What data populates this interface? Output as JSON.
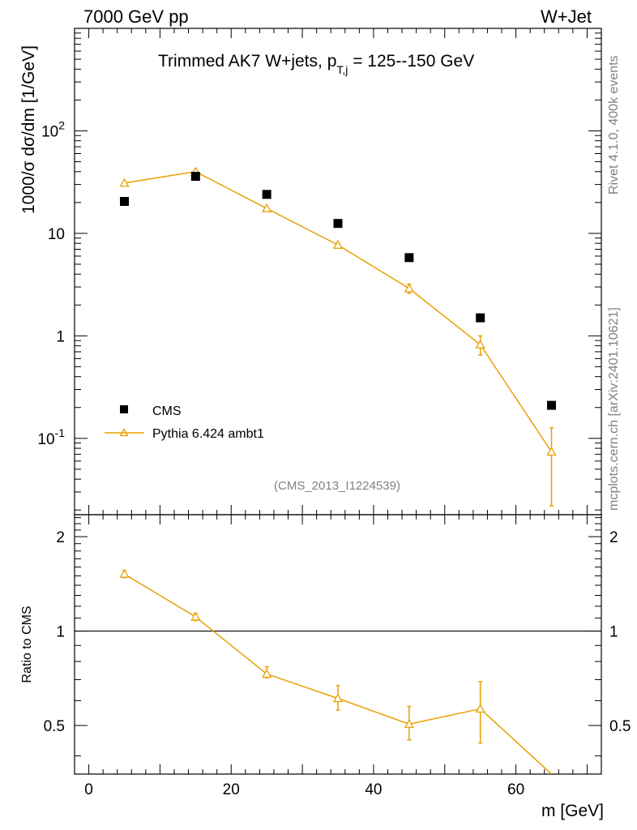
{
  "header": {
    "left": "7000 GeV pp",
    "right": "W+Jet"
  },
  "side": {
    "rivet": "Rivet 4.1.0,  400k events",
    "mcplots": "mcplots.cern.ch [arXiv:2401.10621]"
  },
  "chart_data": [
    {
      "type": "scatter",
      "panel": "main",
      "title_main": "Trimmed AK7 W+jets, p",
      "title_sub": "T,j",
      "title_rest": " = 125--150 GeV",
      "ylabel": "1000/σ  dσ/dm [1/GeV]",
      "yscale": "log",
      "ylim": [
        0.018,
        1000
      ],
      "xlim": [
        -2,
        72
      ],
      "ytick_labels": [
        "10^{-1}",
        "1",
        "10",
        "10^{2}"
      ],
      "ytick_values": [
        0.1,
        1,
        10,
        100
      ],
      "analysis_label": "(CMS_2013_I1224539)",
      "legend": [
        "CMS",
        "Pythia 6.424 ambt1"
      ],
      "series": [
        {
          "name": "CMS",
          "color": "#000000",
          "marker": "square",
          "x": [
            5,
            15,
            25,
            35,
            45,
            55,
            65
          ],
          "y": [
            20.5,
            36.0,
            24.0,
            12.5,
            5.8,
            1.5,
            0.21
          ]
        },
        {
          "name": "Pythia 6.424 ambt1",
          "color": "#E8A000",
          "marker": "triangle",
          "x": [
            5,
            15,
            25,
            35,
            45,
            55,
            65
          ],
          "y": [
            31.0,
            40.0,
            17.5,
            7.7,
            2.9,
            0.82,
            0.074
          ],
          "yerr_low": [
            30.0,
            38.8,
            17.0,
            7.4,
            2.6,
            0.65,
            0.022
          ],
          "yerr_high": [
            32.0,
            41.2,
            18.0,
            8.0,
            3.2,
            1.0,
            0.127
          ]
        }
      ]
    },
    {
      "type": "line",
      "panel": "ratio",
      "ylabel": "Ratio to CMS",
      "xlabel": "m [GeV]",
      "ylim": [
        0.35,
        2.35
      ],
      "xlim": [
        -2,
        72
      ],
      "xtick_labels": [
        "0",
        "20",
        "40",
        "60"
      ],
      "xtick_values": [
        0,
        20,
        40,
        60
      ],
      "ytick_labels": [
        "0.5",
        "1",
        "2"
      ],
      "ytick_values": [
        0.5,
        1,
        2
      ],
      "reference": 1,
      "series": [
        {
          "name": "Pythia 6.424 ambt1 / CMS",
          "color": "#E8A000",
          "x": [
            5,
            15,
            25,
            35,
            45,
            55,
            65
          ],
          "y": [
            1.52,
            1.11,
            0.73,
            0.61,
            0.505,
            0.565,
            0.35
          ],
          "yerr_low": [
            1.48,
            1.08,
            0.71,
            0.56,
            0.45,
            0.44,
            0.35
          ],
          "yerr_high": [
            1.56,
            1.14,
            0.77,
            0.67,
            0.575,
            0.69,
            0.35
          ]
        }
      ]
    }
  ]
}
